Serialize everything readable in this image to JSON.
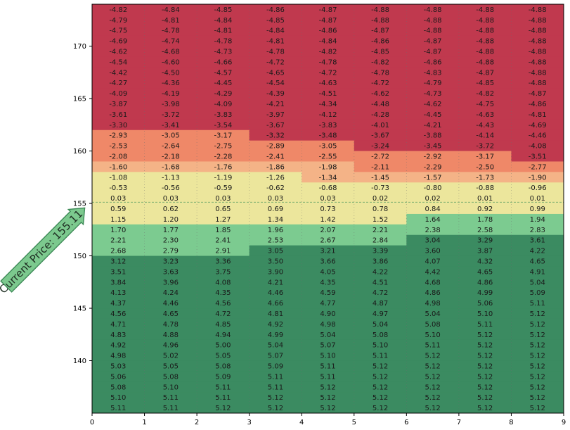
{
  "chart_data": {
    "type": "heatmap",
    "title": "",
    "xlabel": "",
    "ylabel": "",
    "x_ticks": [
      "0",
      "1",
      "2",
      "3",
      "4",
      "5",
      "6",
      "7",
      "8",
      "9"
    ],
    "y_ticks": [
      {
        "value": 140,
        "label": "140"
      },
      {
        "value": 145,
        "label": "145"
      },
      {
        "value": 150,
        "label": "150"
      },
      {
        "value": 155,
        "label": "155"
      },
      {
        "value": 160,
        "label": "160"
      },
      {
        "value": 165,
        "label": "165"
      },
      {
        "value": 170,
        "label": "170"
      }
    ],
    "xlim": [
      0,
      9
    ],
    "ylim": [
      135.0,
      174.0
    ],
    "row_step": 1.0,
    "price_rows": [
      173.5,
      172.5,
      171.5,
      170.5,
      169.5,
      168.5,
      167.5,
      166.5,
      165.5,
      164.5,
      163.5,
      162.5,
      161.5,
      160.5,
      159.5,
      158.5,
      157.5,
      156.5,
      155.5,
      154.5,
      153.5,
      152.5,
      151.5,
      150.5,
      149.5,
      148.5,
      147.5,
      146.5,
      145.5,
      144.5,
      143.5,
      142.5,
      141.5,
      140.5,
      139.5,
      138.5,
      137.5,
      136.5,
      135.5
    ],
    "current_price": 155.11,
    "current_price_label": "Current Price: 155.11",
    "colors": {
      "red": "#c0394e",
      "orange": "#ef8868",
      "peach": "#f4b387",
      "yellow": "#ece69c",
      "lightgreen": "#7ccb90",
      "green": "#3b8b61",
      "banner": "#7cc98e"
    },
    "values": [
      [
        "-4.82",
        "-4.84",
        "-4.85",
        "-4.86",
        "-4.87",
        "-4.88",
        "-4.88",
        "-4.88",
        "-4.88"
      ],
      [
        "-4.79",
        "-4.81",
        "-4.84",
        "-4.85",
        "-4.87",
        "-4.88",
        "-4.88",
        "-4.88",
        "-4.88"
      ],
      [
        "-4.75",
        "-4.78",
        "-4.81",
        "-4.84",
        "-4.86",
        "-4.87",
        "-4.88",
        "-4.88",
        "-4.88"
      ],
      [
        "-4.69",
        "-4.74",
        "-4.78",
        "-4.81",
        "-4.84",
        "-4.86",
        "-4.87",
        "-4.88",
        "-4.88"
      ],
      [
        "-4.62",
        "-4.68",
        "-4.73",
        "-4.78",
        "-4.82",
        "-4.85",
        "-4.87",
        "-4.88",
        "-4.88"
      ],
      [
        "-4.54",
        "-4.60",
        "-4.66",
        "-4.72",
        "-4.78",
        "-4.82",
        "-4.86",
        "-4.88",
        "-4.88"
      ],
      [
        "-4.42",
        "-4.50",
        "-4.57",
        "-4.65",
        "-4.72",
        "-4.78",
        "-4.83",
        "-4.87",
        "-4.88"
      ],
      [
        "-4.27",
        "-4.36",
        "-4.45",
        "-4.54",
        "-4.63",
        "-4.72",
        "-4.79",
        "-4.85",
        "-4.88"
      ],
      [
        "-4.09",
        "-4.19",
        "-4.29",
        "-4.39",
        "-4.51",
        "-4.62",
        "-4.73",
        "-4.82",
        "-4.87"
      ],
      [
        "-3.87",
        "-3.98",
        "-4.09",
        "-4.21",
        "-4.34",
        "-4.48",
        "-4.62",
        "-4.75",
        "-4.86"
      ],
      [
        "-3.61",
        "-3.72",
        "-3.83",
        "-3.97",
        "-4.12",
        "-4.28",
        "-4.45",
        "-4.63",
        "-4.81"
      ],
      [
        "-3.30",
        "-3.41",
        "-3.54",
        "-3.67",
        "-3.83",
        "-4.01",
        "-4.21",
        "-4.43",
        "-4.69"
      ],
      [
        "-2.93",
        "-3.05",
        "-3.17",
        "-3.32",
        "-3.48",
        "-3.67",
        "-3.88",
        "-4.14",
        "-4.46"
      ],
      [
        "-2.53",
        "-2.64",
        "-2.75",
        "-2.89",
        "-3.05",
        "-3.24",
        "-3.45",
        "-3.72",
        "-4.08"
      ],
      [
        "-2.08",
        "-2.18",
        "-2.28",
        "-2.41",
        "-2.55",
        "-2.72",
        "-2.92",
        "-3.17",
        "-3.51"
      ],
      [
        "-1.60",
        "-1.68",
        "-1.76",
        "-1.86",
        "-1.98",
        "-2.11",
        "-2.29",
        "-2.50",
        "-2.77"
      ],
      [
        "-1.08",
        "-1.13",
        "-1.19",
        "-1.26",
        "-1.34",
        "-1.45",
        "-1.57",
        "-1.73",
        "-1.90"
      ],
      [
        "-0.53",
        "-0.56",
        "-0.59",
        "-0.62",
        "-0.68",
        "-0.73",
        "-0.80",
        "-0.88",
        "-0.96"
      ],
      [
        "0.03",
        "0.03",
        "0.03",
        "0.03",
        "0.03",
        "0.02",
        "0.02",
        "0.01",
        "0.01"
      ],
      [
        "0.59",
        "0.62",
        "0.65",
        "0.69",
        "0.73",
        "0.78",
        "0.84",
        "0.92",
        "0.99"
      ],
      [
        "1.15",
        "1.20",
        "1.27",
        "1.34",
        "1.42",
        "1.52",
        "1.64",
        "1.78",
        "1.94"
      ],
      [
        "1.70",
        "1.77",
        "1.85",
        "1.96",
        "2.07",
        "2.21",
        "2.38",
        "2.58",
        "2.83"
      ],
      [
        "2.21",
        "2.30",
        "2.41",
        "2.53",
        "2.67",
        "2.84",
        "3.04",
        "3.29",
        "3.61"
      ],
      [
        "2.68",
        "2.79",
        "2.91",
        "3.05",
        "3.21",
        "3.39",
        "3.60",
        "3.87",
        "4.22"
      ],
      [
        "3.12",
        "3.23",
        "3.36",
        "3.50",
        "3.66",
        "3.86",
        "4.07",
        "4.32",
        "4.65"
      ],
      [
        "3.51",
        "3.63",
        "3.75",
        "3.90",
        "4.05",
        "4.22",
        "4.42",
        "4.65",
        "4.91"
      ],
      [
        "3.84",
        "3.96",
        "4.08",
        "4.21",
        "4.35",
        "4.51",
        "4.68",
        "4.86",
        "5.04"
      ],
      [
        "4.13",
        "4.24",
        "4.35",
        "4.46",
        "4.59",
        "4.72",
        "4.86",
        "4.99",
        "5.09"
      ],
      [
        "4.37",
        "4.46",
        "4.56",
        "4.66",
        "4.77",
        "4.87",
        "4.98",
        "5.06",
        "5.11"
      ],
      [
        "4.56",
        "4.65",
        "4.72",
        "4.81",
        "4.90",
        "4.97",
        "5.04",
        "5.10",
        "5.12"
      ],
      [
        "4.71",
        "4.78",
        "4.85",
        "4.92",
        "4.98",
        "5.04",
        "5.08",
        "5.11",
        "5.12"
      ],
      [
        "4.83",
        "4.88",
        "4.94",
        "4.99",
        "5.04",
        "5.08",
        "5.10",
        "5.12",
        "5.12"
      ],
      [
        "4.92",
        "4.96",
        "5.00",
        "5.04",
        "5.07",
        "5.10",
        "5.11",
        "5.12",
        "5.12"
      ],
      [
        "4.98",
        "5.02",
        "5.05",
        "5.07",
        "5.10",
        "5.11",
        "5.12",
        "5.12",
        "5.12"
      ],
      [
        "5.03",
        "5.05",
        "5.08",
        "5.09",
        "5.11",
        "5.12",
        "5.12",
        "5.12",
        "5.12"
      ],
      [
        "5.06",
        "5.08",
        "5.09",
        "5.11",
        "5.11",
        "5.12",
        "5.12",
        "5.12",
        "5.12"
      ],
      [
        "5.08",
        "5.10",
        "5.11",
        "5.11",
        "5.12",
        "5.12",
        "5.12",
        "5.12",
        "5.12"
      ],
      [
        "5.10",
        "5.11",
        "5.11",
        "5.12",
        "5.12",
        "5.12",
        "5.12",
        "5.12",
        "5.12"
      ],
      [
        "5.11",
        "5.11",
        "5.12",
        "5.12",
        "5.12",
        "5.12",
        "5.12",
        "5.12",
        "5.12"
      ]
    ]
  }
}
